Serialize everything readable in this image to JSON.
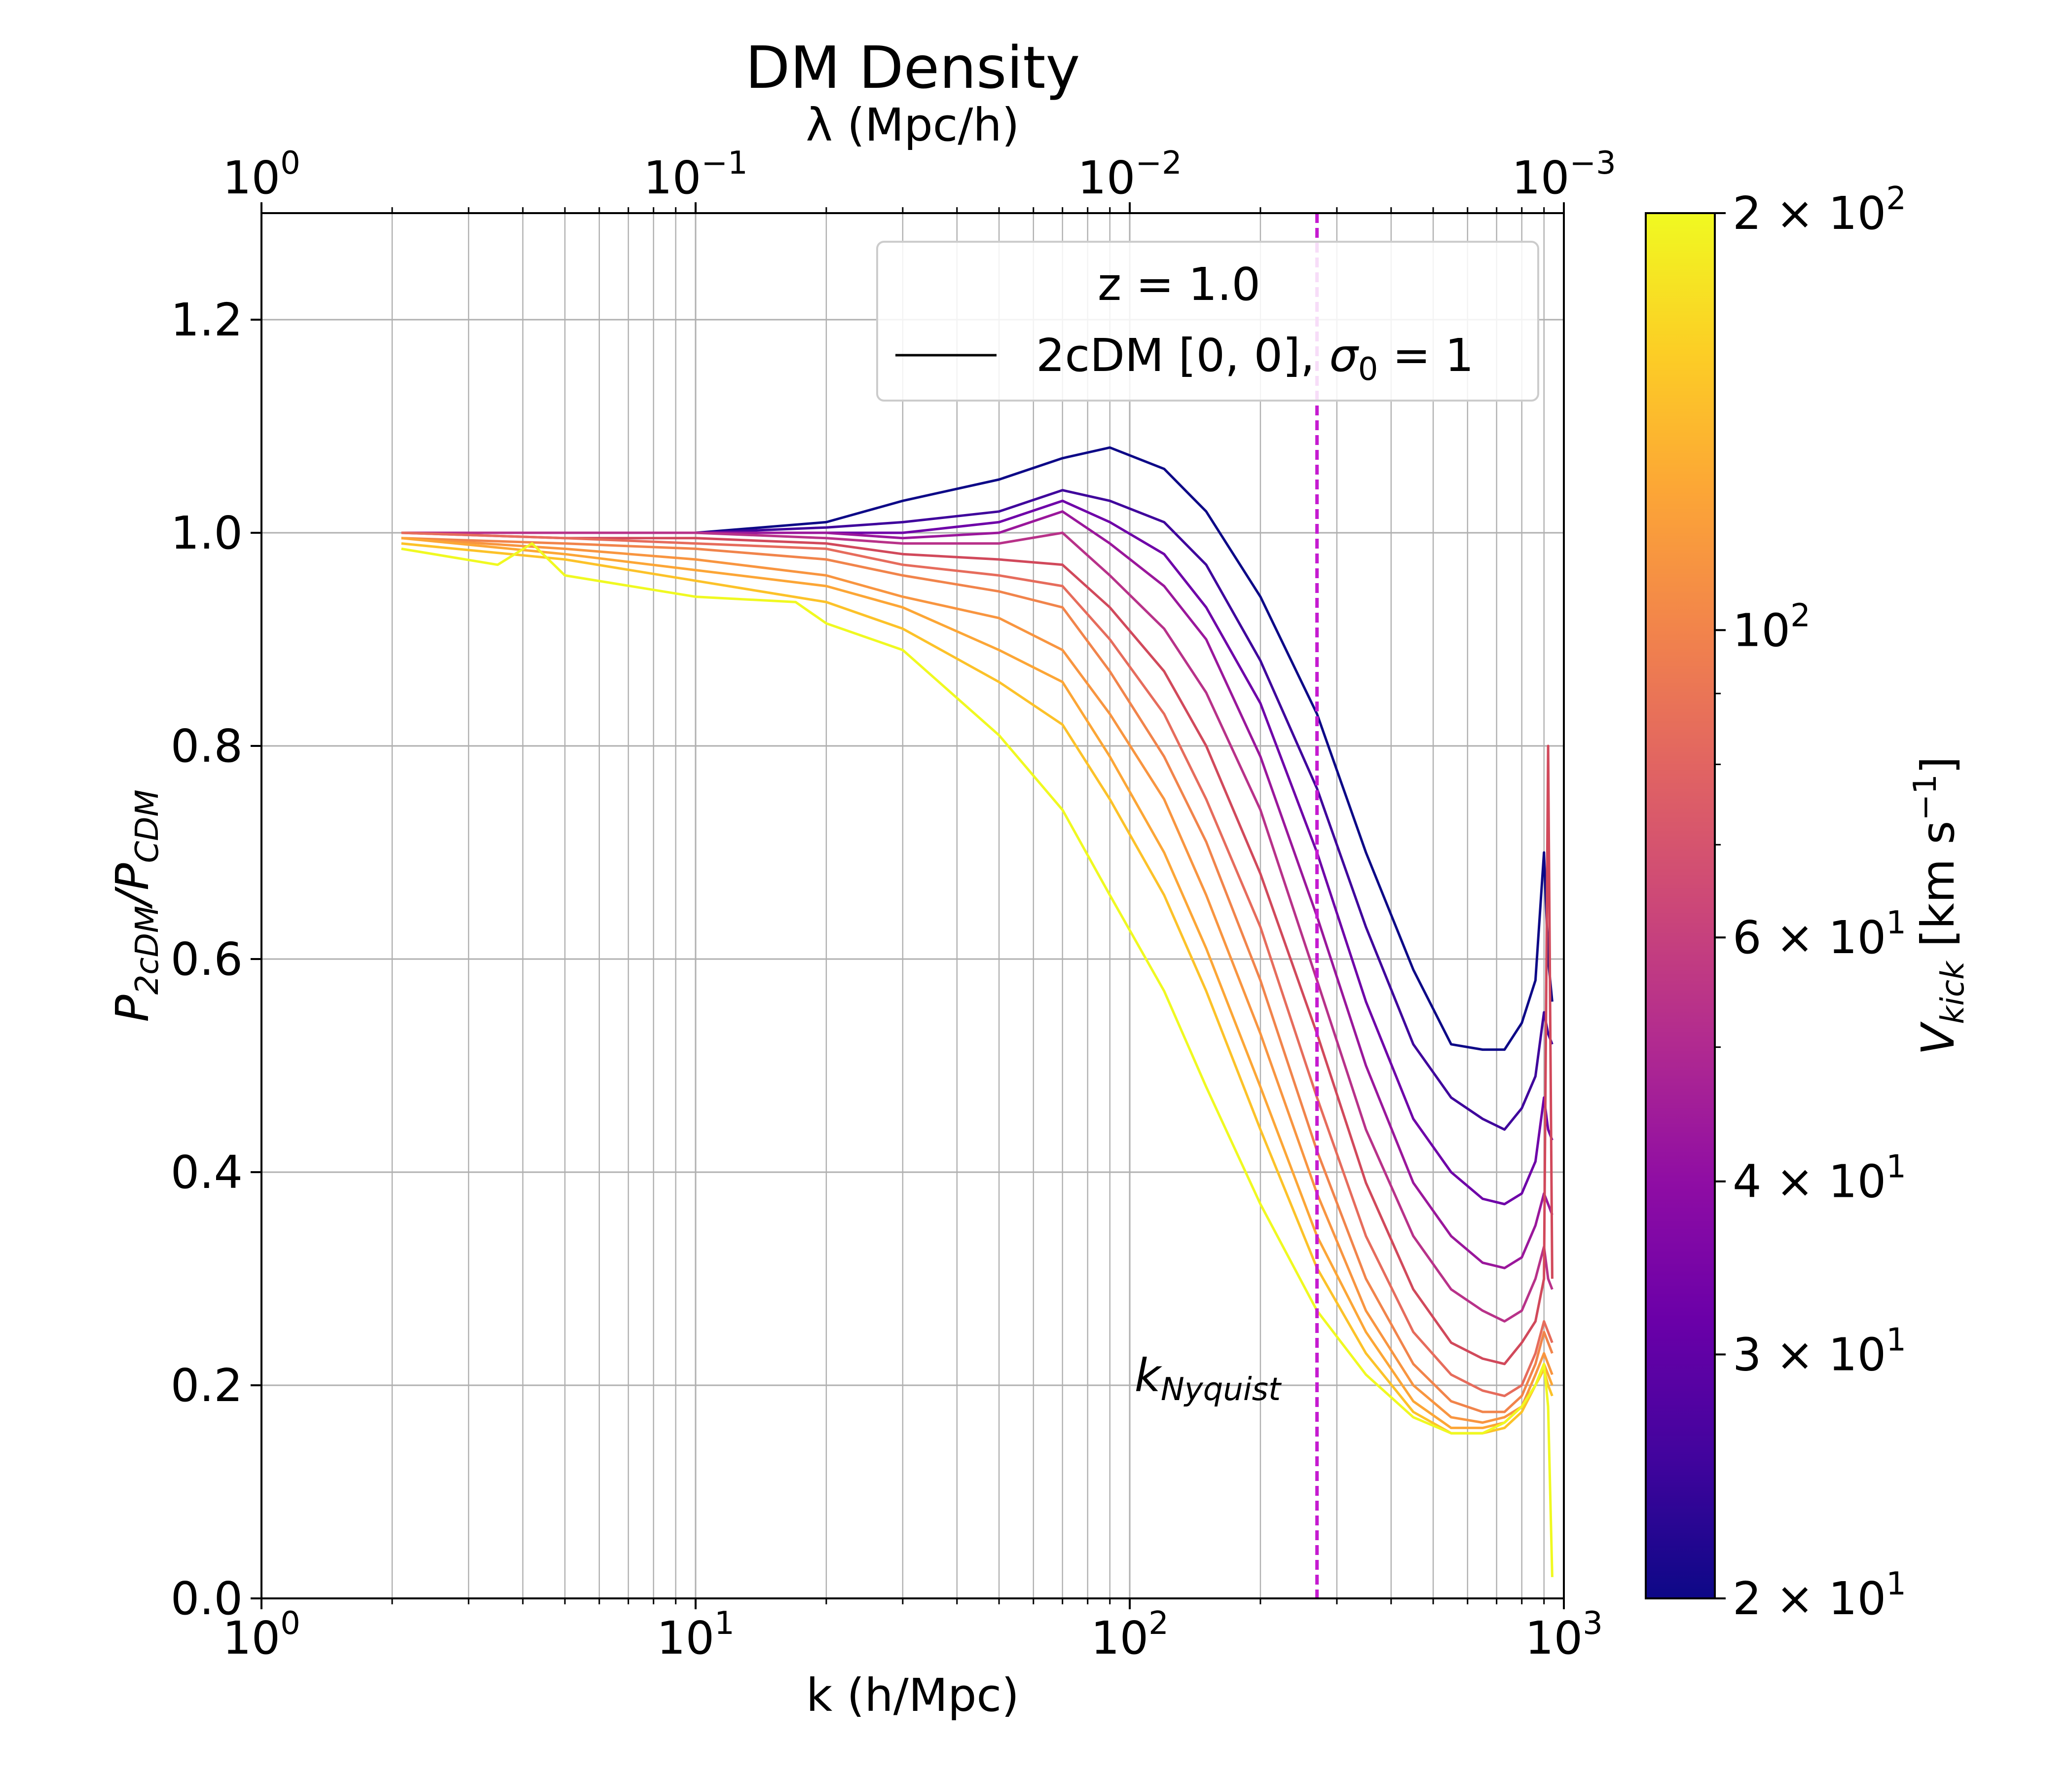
{
  "chart_data": {
    "type": "line",
    "title": "DM Density",
    "xlabel": "k (h/Mpc)",
    "ylabel_main": "P",
    "ylabel_sub1": "2cDM",
    "ylabel_mid": "/P",
    "ylabel_sub2": "CDM",
    "top_xlabel": "λ (Mpc/h)",
    "xscale": "log",
    "xlim": [
      1,
      1000
    ],
    "ylim": [
      0.0,
      1.3
    ],
    "yticks": [
      "0.0",
      "0.2",
      "0.4",
      "0.6",
      "0.8",
      "1.0",
      "1.2"
    ],
    "ytick_values": [
      0.0,
      0.2,
      0.4,
      0.6,
      0.8,
      1.0,
      1.2
    ],
    "xtick_values": [
      1,
      10,
      100,
      1000
    ],
    "xtick_exponents": [
      "0",
      "1",
      "2",
      "3"
    ],
    "top_tick_exponents": [
      "0",
      "−1",
      "−2",
      "−3"
    ],
    "tick_base": "10",
    "grid": true,
    "nyquist": {
      "k": 270,
      "label_main": "k",
      "label_sub": "Nyquist",
      "color": "#c51bd0"
    },
    "legend": {
      "title": "z = 1.0",
      "entry_main": "2cDM [0, 0], ",
      "entry_sigma": "σ",
      "entry_sub": "0",
      "entry_tail": " =  1",
      "position": "top-right"
    },
    "colorbar": {
      "label_main": "V",
      "label_sub": "kick",
      "label_units": " [km s",
      "label_exp": "−1",
      "label_close": "]",
      "scale": "log",
      "range": [
        20,
        200
      ],
      "colormap": "plasma",
      "tick_values": [
        20,
        30,
        40,
        60,
        100,
        200
      ],
      "tick_mantissa": [
        "2 × 10",
        "3 × 10",
        "4 × 10",
        "6 × 10",
        "10",
        "2 × 10"
      ],
      "tick_exp": [
        "1",
        "1",
        "1",
        "1",
        "2",
        "2"
      ]
    },
    "series": [
      {
        "vkick": 20,
        "color": "#0d0887",
        "points": [
          [
            2.1,
            1.0
          ],
          [
            5,
            1.0
          ],
          [
            10,
            1.0
          ],
          [
            20,
            1.01
          ],
          [
            30,
            1.03
          ],
          [
            50,
            1.05
          ],
          [
            70,
            1.07
          ],
          [
            90,
            1.08
          ],
          [
            120,
            1.06
          ],
          [
            150,
            1.02
          ],
          [
            200,
            0.94
          ],
          [
            270,
            0.83
          ],
          [
            350,
            0.7
          ],
          [
            450,
            0.59
          ],
          [
            550,
            0.52
          ],
          [
            650,
            0.515
          ],
          [
            730,
            0.515
          ],
          [
            800,
            0.54
          ],
          [
            860,
            0.58
          ],
          [
            900,
            0.7
          ],
          [
            920,
            0.6
          ],
          [
            940,
            0.56
          ]
        ]
      },
      {
        "vkick": 25,
        "color": "#3f049c",
        "points": [
          [
            2.1,
            1.0
          ],
          [
            5,
            1.0
          ],
          [
            10,
            1.0
          ],
          [
            20,
            1.005
          ],
          [
            30,
            1.01
          ],
          [
            50,
            1.02
          ],
          [
            70,
            1.04
          ],
          [
            90,
            1.03
          ],
          [
            120,
            1.01
          ],
          [
            150,
            0.97
          ],
          [
            200,
            0.88
          ],
          [
            270,
            0.76
          ],
          [
            350,
            0.63
          ],
          [
            450,
            0.52
          ],
          [
            550,
            0.47
          ],
          [
            650,
            0.45
          ],
          [
            730,
            0.44
          ],
          [
            800,
            0.46
          ],
          [
            860,
            0.49
          ],
          [
            900,
            0.55
          ],
          [
            920,
            0.53
          ],
          [
            940,
            0.52
          ]
        ]
      },
      {
        "vkick": 31,
        "color": "#6e00a8",
        "points": [
          [
            2.1,
            1.0
          ],
          [
            5,
            1.0
          ],
          [
            10,
            1.0
          ],
          [
            20,
            1.0
          ],
          [
            30,
            1.0
          ],
          [
            50,
            1.01
          ],
          [
            70,
            1.03
          ],
          [
            90,
            1.01
          ],
          [
            120,
            0.98
          ],
          [
            150,
            0.93
          ],
          [
            200,
            0.84
          ],
          [
            270,
            0.7
          ],
          [
            350,
            0.56
          ],
          [
            450,
            0.45
          ],
          [
            550,
            0.4
          ],
          [
            650,
            0.375
          ],
          [
            730,
            0.37
          ],
          [
            800,
            0.38
          ],
          [
            860,
            0.41
          ],
          [
            900,
            0.47
          ],
          [
            920,
            0.44
          ],
          [
            940,
            0.43
          ]
        ]
      },
      {
        "vkick": 38,
        "color": "#9a179b",
        "points": [
          [
            2.1,
            1.0
          ],
          [
            5,
            1.0
          ],
          [
            10,
            1.0
          ],
          [
            20,
            1.0
          ],
          [
            30,
            0.995
          ],
          [
            50,
            1.0
          ],
          [
            70,
            1.02
          ],
          [
            90,
            0.99
          ],
          [
            120,
            0.95
          ],
          [
            150,
            0.9
          ],
          [
            200,
            0.79
          ],
          [
            270,
            0.64
          ],
          [
            350,
            0.5
          ],
          [
            450,
            0.39
          ],
          [
            550,
            0.34
          ],
          [
            650,
            0.315
          ],
          [
            730,
            0.31
          ],
          [
            800,
            0.32
          ],
          [
            860,
            0.35
          ],
          [
            900,
            0.38
          ],
          [
            920,
            0.37
          ],
          [
            940,
            0.36
          ]
        ]
      },
      {
        "vkick": 47,
        "color": "#b83289",
        "points": [
          [
            2.1,
            1.0
          ],
          [
            5,
            1.0
          ],
          [
            10,
            1.0
          ],
          [
            20,
            0.995
          ],
          [
            30,
            0.99
          ],
          [
            50,
            0.99
          ],
          [
            70,
            1.0
          ],
          [
            90,
            0.96
          ],
          [
            120,
            0.91
          ],
          [
            150,
            0.85
          ],
          [
            200,
            0.74
          ],
          [
            270,
            0.58
          ],
          [
            350,
            0.44
          ],
          [
            450,
            0.34
          ],
          [
            550,
            0.29
          ],
          [
            650,
            0.27
          ],
          [
            730,
            0.26
          ],
          [
            800,
            0.27
          ],
          [
            860,
            0.3
          ],
          [
            900,
            0.33
          ],
          [
            920,
            0.3
          ],
          [
            940,
            0.29
          ]
        ]
      },
      {
        "vkick": 58,
        "color": "#d1495b",
        "points": [
          [
            2.1,
            1.0
          ],
          [
            5,
            0.995
          ],
          [
            10,
            0.995
          ],
          [
            20,
            0.99
          ],
          [
            30,
            0.98
          ],
          [
            50,
            0.975
          ],
          [
            70,
            0.97
          ],
          [
            90,
            0.93
          ],
          [
            120,
            0.87
          ],
          [
            150,
            0.8
          ],
          [
            200,
            0.68
          ],
          [
            270,
            0.53
          ],
          [
            350,
            0.39
          ],
          [
            450,
            0.29
          ],
          [
            550,
            0.24
          ],
          [
            650,
            0.225
          ],
          [
            730,
            0.22
          ],
          [
            800,
            0.24
          ],
          [
            860,
            0.26
          ],
          [
            900,
            0.3
          ],
          [
            920,
            0.8
          ],
          [
            940,
            0.3
          ]
        ]
      },
      {
        "vkick": 72,
        "color": "#e66c5c",
        "points": [
          [
            2.1,
            1.0
          ],
          [
            5,
            0.995
          ],
          [
            10,
            0.99
          ],
          [
            20,
            0.985
          ],
          [
            30,
            0.97
          ],
          [
            50,
            0.96
          ],
          [
            70,
            0.95
          ],
          [
            90,
            0.9
          ],
          [
            120,
            0.83
          ],
          [
            150,
            0.75
          ],
          [
            200,
            0.63
          ],
          [
            270,
            0.47
          ],
          [
            350,
            0.34
          ],
          [
            450,
            0.25
          ],
          [
            550,
            0.21
          ],
          [
            650,
            0.195
          ],
          [
            730,
            0.19
          ],
          [
            800,
            0.2
          ],
          [
            860,
            0.23
          ],
          [
            900,
            0.26
          ],
          [
            920,
            0.25
          ],
          [
            940,
            0.24
          ]
        ]
      },
      {
        "vkick": 89,
        "color": "#f1844b",
        "points": [
          [
            2.1,
            0.995
          ],
          [
            5,
            0.99
          ],
          [
            10,
            0.985
          ],
          [
            20,
            0.975
          ],
          [
            30,
            0.96
          ],
          [
            50,
            0.945
          ],
          [
            70,
            0.93
          ],
          [
            90,
            0.87
          ],
          [
            120,
            0.79
          ],
          [
            150,
            0.71
          ],
          [
            200,
            0.58
          ],
          [
            270,
            0.42
          ],
          [
            350,
            0.3
          ],
          [
            450,
            0.22
          ],
          [
            550,
            0.185
          ],
          [
            650,
            0.175
          ],
          [
            730,
            0.175
          ],
          [
            800,
            0.19
          ],
          [
            860,
            0.22
          ],
          [
            900,
            0.25
          ],
          [
            920,
            0.24
          ],
          [
            940,
            0.23
          ]
        ]
      },
      {
        "vkick": 110,
        "color": "#f89540",
        "points": [
          [
            2.1,
            0.995
          ],
          [
            5,
            0.985
          ],
          [
            10,
            0.975
          ],
          [
            20,
            0.96
          ],
          [
            30,
            0.94
          ],
          [
            50,
            0.92
          ],
          [
            70,
            0.89
          ],
          [
            90,
            0.83
          ],
          [
            120,
            0.75
          ],
          [
            150,
            0.66
          ],
          [
            200,
            0.53
          ],
          [
            270,
            0.38
          ],
          [
            350,
            0.27
          ],
          [
            450,
            0.2
          ],
          [
            550,
            0.17
          ],
          [
            650,
            0.165
          ],
          [
            730,
            0.17
          ],
          [
            800,
            0.18
          ],
          [
            860,
            0.21
          ],
          [
            900,
            0.23
          ],
          [
            920,
            0.22
          ],
          [
            940,
            0.21
          ]
        ]
      },
      {
        "vkick": 135,
        "color": "#fca636",
        "points": [
          [
            2.1,
            0.995
          ],
          [
            5,
            0.98
          ],
          [
            10,
            0.965
          ],
          [
            20,
            0.95
          ],
          [
            30,
            0.93
          ],
          [
            50,
            0.89
          ],
          [
            70,
            0.86
          ],
          [
            90,
            0.79
          ],
          [
            120,
            0.7
          ],
          [
            150,
            0.61
          ],
          [
            200,
            0.48
          ],
          [
            270,
            0.34
          ],
          [
            350,
            0.25
          ],
          [
            450,
            0.185
          ],
          [
            550,
            0.16
          ],
          [
            650,
            0.16
          ],
          [
            730,
            0.165
          ],
          [
            800,
            0.18
          ],
          [
            860,
            0.2
          ],
          [
            900,
            0.22
          ],
          [
            920,
            0.21
          ],
          [
            940,
            0.2
          ]
        ]
      },
      {
        "vkick": 165,
        "color": "#fcc229",
        "points": [
          [
            2.1,
            0.99
          ],
          [
            5,
            0.975
          ],
          [
            10,
            0.955
          ],
          [
            20,
            0.935
          ],
          [
            30,
            0.91
          ],
          [
            50,
            0.86
          ],
          [
            70,
            0.82
          ],
          [
            90,
            0.75
          ],
          [
            120,
            0.66
          ],
          [
            150,
            0.57
          ],
          [
            200,
            0.44
          ],
          [
            270,
            0.31
          ],
          [
            350,
            0.23
          ],
          [
            450,
            0.175
          ],
          [
            550,
            0.155
          ],
          [
            650,
            0.155
          ],
          [
            730,
            0.16
          ],
          [
            800,
            0.175
          ],
          [
            860,
            0.2
          ],
          [
            900,
            0.215
          ],
          [
            920,
            0.2
          ],
          [
            940,
            0.19
          ]
        ]
      },
      {
        "vkick": 200,
        "color": "#f0f921",
        "points": [
          [
            2.1,
            0.985
          ],
          [
            3.5,
            0.97
          ],
          [
            4.2,
            0.99
          ],
          [
            5,
            0.96
          ],
          [
            10,
            0.94
          ],
          [
            17,
            0.935
          ],
          [
            20,
            0.915
          ],
          [
            30,
            0.89
          ],
          [
            50,
            0.81
          ],
          [
            70,
            0.74
          ],
          [
            90,
            0.66
          ],
          [
            120,
            0.57
          ],
          [
            150,
            0.48
          ],
          [
            200,
            0.37
          ],
          [
            270,
            0.27
          ],
          [
            350,
            0.21
          ],
          [
            450,
            0.17
          ],
          [
            550,
            0.155
          ],
          [
            650,
            0.155
          ],
          [
            730,
            0.165
          ],
          [
            800,
            0.18
          ],
          [
            860,
            0.2
          ],
          [
            900,
            0.22
          ],
          [
            920,
            0.18
          ],
          [
            940,
            0.02
          ]
        ]
      }
    ]
  }
}
